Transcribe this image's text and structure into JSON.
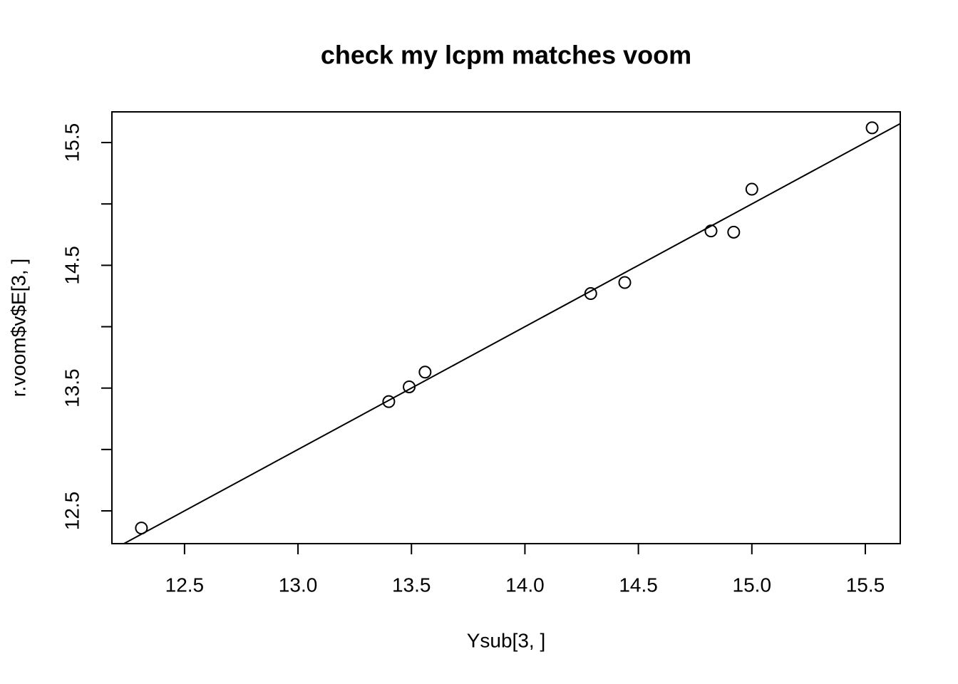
{
  "chart_data": {
    "type": "scatter",
    "title": "check my lcpm matches voom",
    "x_label": "Ysub[3, ]",
    "y_label": "r.voom$v$E[3, ]",
    "x": [
      12.31,
      13.4,
      13.49,
      13.56,
      14.29,
      14.44,
      14.82,
      14.92,
      15.0,
      15.53
    ],
    "values": [
      12.36,
      13.39,
      13.51,
      13.63,
      14.27,
      14.36,
      14.78,
      14.77,
      15.12,
      15.62
    ],
    "color": "#000000",
    "xlim": [
      12.18,
      15.654
    ],
    "ylim": [
      12.233,
      15.75
    ],
    "xticks": [
      12.5,
      {
        "value": 13,
        "label": "13.0"
      },
      13.5,
      {
        "value": 14,
        "label": "14.0"
      },
      14.5,
      {
        "value": 15,
        "label": "15.0"
      },
      15.5
    ],
    "yticks": [
      12.5,
      13.5,
      14.5,
      15.5
    ],
    "yticks_unlabeled": [
      13,
      14,
      15
    ],
    "abline": {
      "intercept": 0,
      "slope": 1
    },
    "grid": false
  }
}
